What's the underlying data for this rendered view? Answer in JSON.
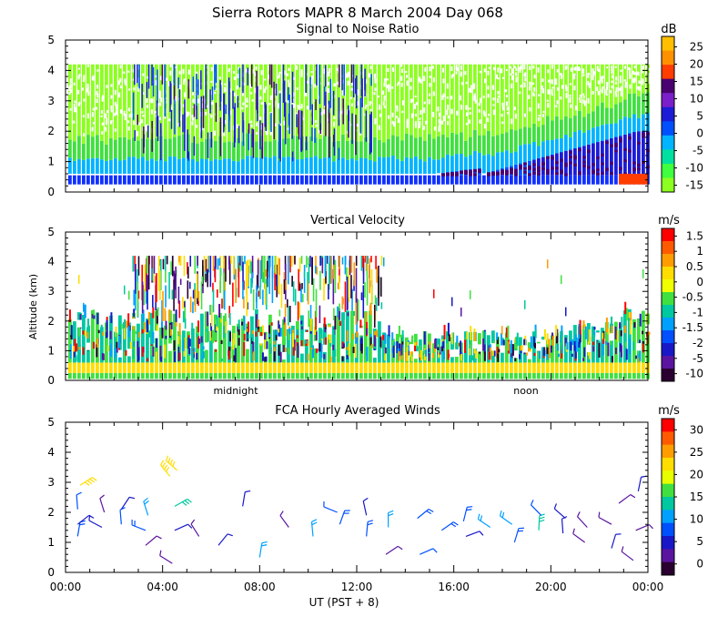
{
  "header": {
    "title": "Sierra Rotors  MAPR  8 March 2004 Day 068"
  },
  "x_axis": {
    "label": "UT  (PST + 8)",
    "ticks": [
      "00:00",
      "04:00",
      "08:00",
      "12:00",
      "16:00",
      "20:00",
      "00:00"
    ],
    "tick_hours": [
      0,
      4,
      8,
      12,
      16,
      20,
      24
    ],
    "range_hours": [
      0,
      24
    ]
  },
  "chart_data": [
    {
      "type": "heatmap",
      "title": "Signal to Noise Ratio",
      "ylabel": "",
      "ylim": [
        0,
        5
      ],
      "yticks": [
        "0",
        "1",
        "2",
        "3",
        "4",
        "5"
      ],
      "colorbar": {
        "unit": "dB",
        "labels": [
          "25",
          "20",
          "15",
          "10",
          "5",
          "0",
          "-5",
          "-10",
          "-15"
        ],
        "colors": [
          "#ffbf00",
          "#ff9100",
          "#ff3d00",
          "#4a0070",
          "#7a1fc9",
          "#1c1cd6",
          "#0050ff",
          "#00b4ff",
          "#00e0a0",
          "#40ff40",
          "#8cff20"
        ]
      },
      "data_top_km": 4.2
    },
    {
      "type": "heatmap",
      "title": "Vertical Velocity",
      "ylabel": "Altitude (km)",
      "ylim": [
        0,
        5
      ],
      "yticks": [
        "0",
        "1",
        "2",
        "3",
        "4",
        "5"
      ],
      "annotations": [
        {
          "text": "midnight",
          "hour": 8
        },
        {
          "text": "noon",
          "hour": 20
        }
      ],
      "colorbar": {
        "unit": "m/s",
        "labels": [
          "1.5",
          "1",
          "0.5",
          "0",
          "-0.5",
          "-1",
          "-1.5",
          "-2",
          "-5",
          "-10"
        ],
        "colors": [
          "#ff0000",
          "#ff5a00",
          "#ff9d00",
          "#ffdd00",
          "#f0ff00",
          "#40e040",
          "#00c8a0",
          "#00a0ff",
          "#0050ff",
          "#1818c8",
          "#5a14a0",
          "#2a0030"
        ]
      },
      "data_top_km": 4.2
    },
    {
      "type": "scatter",
      "title": "FCA Hourly Averaged Winds",
      "ylabel": "",
      "ylim": [
        0,
        5
      ],
      "yticks": [
        "0",
        "1",
        "2",
        "3",
        "4",
        "5"
      ],
      "colorbar": {
        "unit": "m/s",
        "labels": [
          "30",
          "25",
          "20",
          "15",
          "10",
          "5",
          "0"
        ],
        "colors": [
          "#ff0000",
          "#ff5a00",
          "#ff9d00",
          "#ffdd00",
          "#e8ff00",
          "#40e040",
          "#00c8a0",
          "#00a0ff",
          "#0050ff",
          "#1818c8",
          "#5a14a0",
          "#2a0030"
        ]
      },
      "wind_barbs": [
        {
          "hour": 0.5,
          "km": 1.2,
          "speed": 8
        },
        {
          "hour": 0.5,
          "km": 1.6,
          "speed": 6
        },
        {
          "hour": 0.5,
          "km": 2.1,
          "speed": 7
        },
        {
          "hour": 0.6,
          "km": 2.9,
          "speed": 21
        },
        {
          "hour": 1.5,
          "km": 1.5,
          "speed": 5
        },
        {
          "hour": 1.6,
          "km": 2.0,
          "speed": 4
        },
        {
          "hour": 2.3,
          "km": 1.6,
          "speed": 7
        },
        {
          "hour": 2.3,
          "km": 2.1,
          "speed": 5
        },
        {
          "hour": 3.3,
          "km": 1.4,
          "speed": 9
        },
        {
          "hour": 3.4,
          "km": 1.9,
          "speed": 11
        },
        {
          "hour": 3.3,
          "km": 0.9,
          "speed": 3
        },
        {
          "hour": 4.3,
          "km": 3.2,
          "speed": 22
        },
        {
          "hour": 4.6,
          "km": 3.4,
          "speed": 23
        },
        {
          "hour": 4.5,
          "km": 2.2,
          "speed": 14
        },
        {
          "hour": 4.5,
          "km": 1.4,
          "speed": 6
        },
        {
          "hour": 4.4,
          "km": 0.3,
          "speed": 4
        },
        {
          "hour": 5.5,
          "km": 1.2,
          "speed": 2
        },
        {
          "hour": 6.3,
          "km": 0.9,
          "speed": 5
        },
        {
          "hour": 7.3,
          "km": 2.2,
          "speed": 6
        },
        {
          "hour": 8.0,
          "km": 0.5,
          "speed": 10
        },
        {
          "hour": 9.2,
          "km": 1.5,
          "speed": 4
        },
        {
          "hour": 10.2,
          "km": 1.2,
          "speed": 12
        },
        {
          "hour": 11.3,
          "km": 1.6,
          "speed": 8
        },
        {
          "hour": 11.2,
          "km": 2.0,
          "speed": 7
        },
        {
          "hour": 12.4,
          "km": 1.2,
          "speed": 9
        },
        {
          "hour": 12.4,
          "km": 1.9,
          "speed": 5
        },
        {
          "hour": 13.3,
          "km": 1.5,
          "speed": 12
        },
        {
          "hour": 13.2,
          "km": 0.6,
          "speed": 4
        },
        {
          "hour": 14.5,
          "km": 1.8,
          "speed": 8
        },
        {
          "hour": 14.6,
          "km": 0.6,
          "speed": 7
        },
        {
          "hour": 15.5,
          "km": 1.4,
          "speed": 9
        },
        {
          "hour": 16.5,
          "km": 1.2,
          "speed": 6
        },
        {
          "hour": 16.4,
          "km": 1.7,
          "speed": 8
        },
        {
          "hour": 17.5,
          "km": 1.5,
          "speed": 11
        },
        {
          "hour": 18.4,
          "km": 1.6,
          "speed": 10
        },
        {
          "hour": 18.5,
          "km": 1.0,
          "speed": 8
        },
        {
          "hour": 19.5,
          "km": 1.4,
          "speed": 13
        },
        {
          "hour": 19.6,
          "km": 1.9,
          "speed": 7
        },
        {
          "hour": 20.5,
          "km": 1.3,
          "speed": 6
        },
        {
          "hour": 20.6,
          "km": 1.8,
          "speed": 5
        },
        {
          "hour": 21.5,
          "km": 1.5,
          "speed": 4
        },
        {
          "hour": 21.4,
          "km": 1.0,
          "speed": 3
        },
        {
          "hour": 22.5,
          "km": 0.8,
          "speed": 6
        },
        {
          "hour": 22.5,
          "km": 1.6,
          "speed": 4
        },
        {
          "hour": 22.8,
          "km": 2.3,
          "speed": 2
        },
        {
          "hour": 23.5,
          "km": 1.4,
          "speed": 4
        },
        {
          "hour": 23.6,
          "km": 2.7,
          "speed": 5
        },
        {
          "hour": 23.4,
          "km": 0.4,
          "speed": 3
        }
      ]
    }
  ]
}
